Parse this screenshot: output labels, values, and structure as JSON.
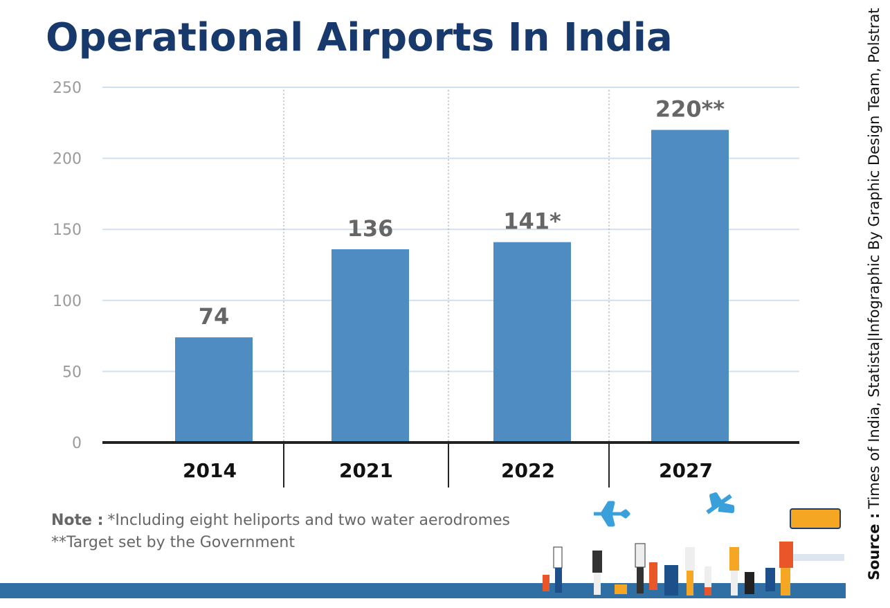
{
  "chart_data": {
    "type": "bar",
    "title": "Operational Airports In India",
    "categories": [
      "2014",
      "2021",
      "2022",
      "2027"
    ],
    "values": [
      74,
      136,
      141,
      220
    ],
    "value_labels": [
      "74",
      "136",
      "141*",
      "220**"
    ],
    "color": "#4f8cc2",
    "ylim": [
      0,
      250
    ],
    "yticks": [
      0,
      50,
      100,
      150,
      200,
      250
    ],
    "grid": true,
    "note_label": "Note :",
    "notes": [
      "*Including eight heliports and two water aerodromes",
      "**Target set by the Government"
    ],
    "source_label": "Source :",
    "source": "Times of India, Statista|Infographic By Graphic Design Team, Polstrat"
  }
}
